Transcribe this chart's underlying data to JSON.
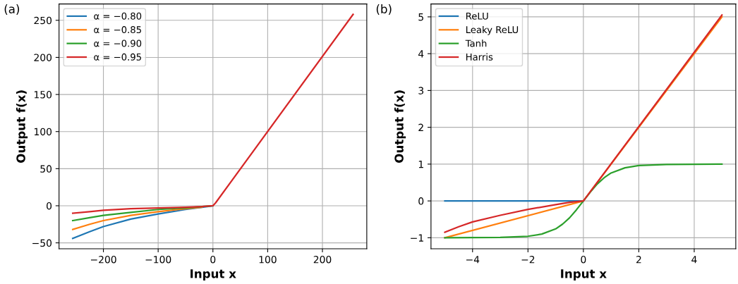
{
  "chart_data": [
    {
      "type": "line",
      "xlabel": "Input x",
      "ylabel": "Output f(x)",
      "annotations": [
        "(a)"
      ],
      "xlim": [
        -281,
        281
      ],
      "ylim": [
        -58,
        272
      ],
      "xticks": [
        {
          "value": -200,
          "label": "−200"
        },
        {
          "value": -100,
          "label": "−100"
        },
        0,
        100,
        200
      ],
      "yticks": [
        {
          "value": -50,
          "label": "−50"
        },
        0,
        50,
        100,
        150,
        200,
        250
      ],
      "grid": true,
      "legend": "top left",
      "line_style": "solid",
      "marker": "none",
      "series": [
        {
          "name": "α = −0.80",
          "color": "#1f77b4",
          "x": [
            -256,
            -225,
            -200,
            -150,
            -100,
            -50,
            -20,
            0
          ],
          "values": [
            -44,
            -35,
            -28,
            -18,
            -11,
            -5,
            -2,
            0
          ]
        },
        {
          "name": "α = −0.85",
          "color": "#ff7f0e",
          "x": [
            -256,
            -225,
            -200,
            -150,
            -100,
            -50,
            -20
          ],
          "values": [
            -32,
            -25,
            -20,
            -13,
            -8,
            -4,
            -2
          ]
        },
        {
          "name": "α = −0.90",
          "color": "#2ca02c",
          "x": [
            -256,
            -225,
            -200,
            -150,
            -100,
            -50,
            -20,
            0
          ],
          "values": [
            -20,
            -16,
            -13,
            -9,
            -5,
            -3,
            -1,
            0
          ]
        },
        {
          "name": "α = −0.95",
          "color": "#d62728",
          "x": [
            -256,
            -225,
            -200,
            -150,
            -100,
            -50,
            -20,
            0,
            5,
            256
          ],
          "values": [
            -10,
            -8,
            -6,
            -4,
            -3,
            -2,
            -1,
            0,
            4,
            258
          ]
        }
      ]
    },
    {
      "type": "line",
      "xlabel": "Input x",
      "ylabel": "Output f(x)",
      "annotations": [
        "(b)"
      ],
      "xlim": [
        -5.5,
        5.5
      ],
      "ylim": [
        -1.3,
        5.35
      ],
      "xticks": [
        {
          "value": -4,
          "label": "−4"
        },
        {
          "value": -2,
          "label": "−2"
        },
        0,
        2,
        4
      ],
      "yticks": [
        {
          "value": -1,
          "label": "−1"
        },
        0,
        1,
        2,
        3,
        4,
        5
      ],
      "grid": true,
      "legend": "top left",
      "line_style": "solid",
      "marker": "none",
      "series": [
        {
          "name": "ReLU",
          "color": "#1f77b4",
          "x": [
            -5,
            0
          ],
          "values": [
            0,
            0
          ]
        },
        {
          "name": "Leaky ReLU",
          "color": "#ff7f0e",
          "x": [
            -5,
            0,
            5
          ],
          "values": [
            -1,
            0,
            5
          ]
        },
        {
          "name": "Tanh",
          "color": "#2ca02c",
          "x": [
            -5,
            -3,
            -2,
            -1.5,
            -1,
            -0.75,
            -0.5,
            -0.25,
            0,
            0.25,
            0.5,
            0.75,
            1,
            1.5,
            2,
            3,
            5
          ],
          "values": [
            -1,
            -0.99,
            -0.96,
            -0.9,
            -0.76,
            -0.63,
            -0.46,
            -0.24,
            0,
            0.24,
            0.46,
            0.63,
            0.76,
            0.9,
            0.96,
            0.99,
            1
          ]
        },
        {
          "name": "Harris",
          "color": "#d62728",
          "x": [
            -5,
            -4.5,
            -4,
            -3,
            -2,
            -1,
            -0.5,
            0,
            5
          ],
          "values": [
            -0.85,
            -0.7,
            -0.57,
            -0.39,
            -0.23,
            -0.1,
            -0.04,
            0,
            5.05
          ]
        }
      ]
    }
  ]
}
